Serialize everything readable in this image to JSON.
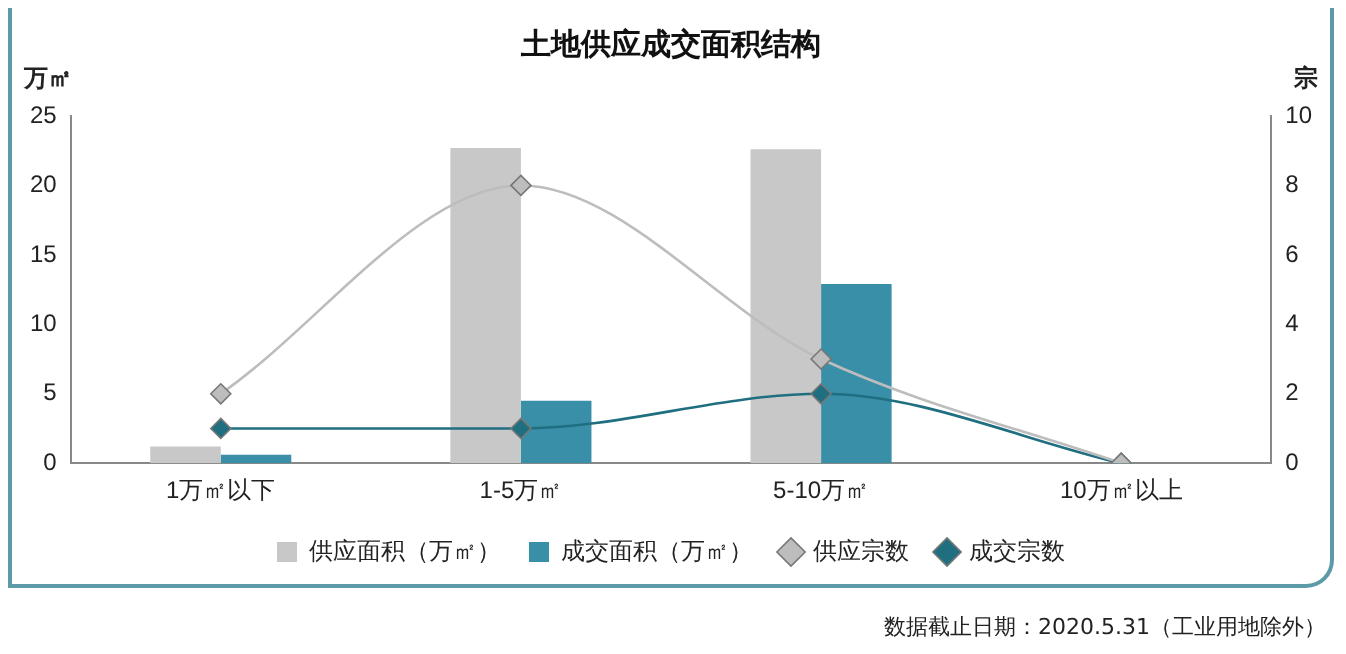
{
  "chart_data": {
    "type": "bar",
    "title": "土地供应成交面积结构",
    "ylabel": "万㎡",
    "y2label": "宗",
    "categories": [
      "1万㎡以下",
      "1-5万㎡",
      "5-10万㎡",
      "10万㎡以上"
    ],
    "series": [
      {
        "name": "供应面积（万㎡）",
        "color": "#c8c8c8",
        "values": [
          1.2,
          22.7,
          22.6,
          0
        ]
      },
      {
        "name": "成交面积（万㎡）",
        "color": "#3a8fa8",
        "values": [
          0.6,
          4.5,
          12.9,
          0
        ]
      },
      {
        "name": "供应宗数",
        "type": "line",
        "axis": "y2",
        "color": "#bdbdbd",
        "values": [
          2,
          8,
          3,
          0
        ]
      },
      {
        "name": "成交宗数",
        "type": "line",
        "axis": "y2",
        "color": "#1f6f80",
        "values": [
          1,
          1,
          2,
          0
        ]
      }
    ],
    "ylim": [
      0,
      25
    ],
    "yticks": [
      0,
      5,
      10,
      15,
      20,
      25
    ],
    "y2lim": [
      0,
      10
    ],
    "y2ticks": [
      0,
      2,
      4,
      6,
      8,
      10
    ],
    "grid": false,
    "legend": "bottom",
    "marker": "diamond",
    "line_style": "solid",
    "annotations": [
      "数据截止日期：2020.5.31（工业用地除外）"
    ]
  }
}
